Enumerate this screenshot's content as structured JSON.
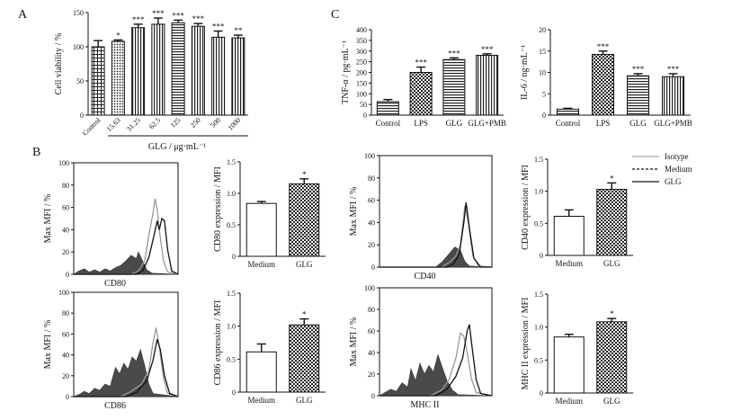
{
  "panel_labels": {
    "a": "A",
    "b": "B",
    "c": "C"
  },
  "chart_data": [
    {
      "id": "viability",
      "type": "bar",
      "ylabel": "Cell viability / %",
      "xlabel": "GLG / μg·mL⁻¹",
      "ylim": [
        0,
        150
      ],
      "yticks": [
        "0",
        "50",
        "100",
        "150"
      ],
      "categories": [
        "Control",
        "15.63",
        "31.25",
        "62.5",
        "125",
        "250",
        "500",
        "1000"
      ],
      "values": [
        100,
        108,
        128,
        133,
        135,
        130,
        114,
        113
      ],
      "errors": [
        9,
        2,
        5,
        9,
        4,
        4,
        9,
        4
      ],
      "significance": [
        "",
        "*",
        "***",
        "***",
        "***",
        "***",
        "***",
        "**"
      ],
      "fill_patterns": [
        "grid",
        "dots",
        "vlines",
        "vlines",
        "hlines",
        "vlines",
        "vlines",
        "vlines"
      ]
    },
    {
      "id": "tnf",
      "type": "bar",
      "ylabel": "TNF-α / pg·mL⁻¹",
      "ylim": [
        0,
        400
      ],
      "yticks": [
        "0",
        "50",
        "100",
        "150",
        "200",
        "250",
        "300",
        "350",
        "400"
      ],
      "categories": [
        "Control",
        "LPS",
        "GLG",
        "GLG+PMB"
      ],
      "values": [
        63,
        200,
        260,
        280
      ],
      "errors": [
        10,
        25,
        8,
        7
      ],
      "significance": [
        "",
        "***",
        "***",
        "***"
      ],
      "fill_patterns": [
        "hlines",
        "checker",
        "hlines",
        "vlines"
      ]
    },
    {
      "id": "il6",
      "type": "bar",
      "ylabel": "IL-6 / ng·mL⁻¹",
      "ylim": [
        0,
        20
      ],
      "yticks": [
        "0",
        "5",
        "10",
        "15",
        "20"
      ],
      "categories": [
        "Control",
        "LPS",
        "GLG",
        "GLG+PMB"
      ],
      "values": [
        1.4,
        14.2,
        9.2,
        9.0
      ],
      "errors": [
        0.2,
        0.8,
        0.5,
        0.7
      ],
      "significance": [
        "",
        "***",
        "***",
        "***"
      ],
      "fill_patterns": [
        "hlines",
        "checker",
        "hlines",
        "vlines"
      ]
    },
    {
      "id": "cd80-bar",
      "type": "bar",
      "ylabel": "CD80 expression / MFI",
      "ylim": [
        0,
        1.5
      ],
      "yticks": [
        "0",
        "0.5",
        "1.0",
        "1.5"
      ],
      "categories": [
        "Medium",
        "GLG"
      ],
      "values": [
        0.84,
        1.15
      ],
      "errors": [
        0.03,
        0.08
      ],
      "significance": [
        "",
        "*"
      ],
      "fill_patterns": [
        "white",
        "checker"
      ]
    },
    {
      "id": "cd86-bar",
      "type": "bar",
      "ylabel": "CD86 expression / MFI",
      "ylim": [
        0,
        1.5
      ],
      "yticks": [
        "0",
        "0.5",
        "1.0",
        "1.5"
      ],
      "categories": [
        "Medium",
        "GLG"
      ],
      "values": [
        0.61,
        1.02
      ],
      "errors": [
        0.12,
        0.09
      ],
      "significance": [
        "",
        "*"
      ],
      "fill_patterns": [
        "white",
        "checker"
      ]
    },
    {
      "id": "cd40-bar",
      "type": "bar",
      "ylabel": "CD40 expression / MFI",
      "ylim": [
        0,
        1.5
      ],
      "yticks": [
        "0",
        "0.5",
        "1.0",
        "1.5"
      ],
      "categories": [
        "Medium",
        "GLG"
      ],
      "values": [
        0.61,
        1.03
      ],
      "errors": [
        0.1,
        0.1
      ],
      "significance": [
        "",
        "*"
      ],
      "fill_patterns": [
        "white",
        "checker"
      ]
    },
    {
      "id": "mhc-bar",
      "type": "bar",
      "ylabel": "MHC II expression / MFI",
      "ylim": [
        0,
        1.5
      ],
      "yticks": [
        "0",
        "0.5",
        "1.0",
        "1.5"
      ],
      "categories": [
        "Medium",
        "GLG"
      ],
      "values": [
        0.85,
        1.08
      ],
      "errors": [
        0.04,
        0.05
      ],
      "significance": [
        "",
        "*"
      ],
      "fill_patterns": [
        "white",
        "checker"
      ]
    },
    {
      "id": "cd80-hist",
      "type": "area",
      "xlabel": "CD80",
      "ylabel": "Max MFI / %",
      "ylim": [
        0,
        100
      ],
      "yticks": [
        "0",
        "20",
        "40",
        "60",
        "80",
        "100"
      ],
      "series": [
        {
          "name": "Isotype",
          "points": [
            [
              0,
              0
            ],
            [
              0.05,
              3
            ],
            [
              0.1,
              5
            ],
            [
              0.15,
              2
            ],
            [
              0.2,
              4
            ],
            [
              0.25,
              2
            ],
            [
              0.3,
              5
            ],
            [
              0.35,
              3
            ],
            [
              0.4,
              6
            ],
            [
              0.45,
              8
            ],
            [
              0.5,
              12
            ],
            [
              0.55,
              17
            ],
            [
              0.6,
              14
            ],
            [
              0.62,
              20
            ],
            [
              0.66,
              12
            ],
            [
              0.7,
              4
            ],
            [
              0.75,
              1
            ],
            [
              1,
              0
            ]
          ]
        },
        {
          "name": "Medium",
          "points": [
            [
              0,
              0
            ],
            [
              0.55,
              0
            ],
            [
              0.62,
              3
            ],
            [
              0.68,
              12
            ],
            [
              0.72,
              35
            ],
            [
              0.76,
              55
            ],
            [
              0.78,
              68
            ],
            [
              0.8,
              58
            ],
            [
              0.82,
              40
            ],
            [
              0.86,
              12
            ],
            [
              0.9,
              2
            ],
            [
              1,
              0
            ]
          ]
        },
        {
          "name": "GLG",
          "points": [
            [
              0,
              0
            ],
            [
              0.6,
              0
            ],
            [
              0.66,
              3
            ],
            [
              0.72,
              15
            ],
            [
              0.77,
              35
            ],
            [
              0.8,
              48
            ],
            [
              0.82,
              40
            ],
            [
              0.845,
              50
            ],
            [
              0.87,
              48
            ],
            [
              0.9,
              22
            ],
            [
              0.94,
              3
            ],
            [
              1,
              0
            ]
          ]
        }
      ]
    },
    {
      "id": "cd86-hist",
      "type": "area",
      "xlabel": "CD86",
      "ylabel": "Max MFI / %",
      "ylim": [
        0,
        100
      ],
      "yticks": [
        "0",
        "20",
        "40",
        "60",
        "80",
        "100"
      ],
      "series": [
        {
          "name": "Isotype",
          "points": [
            [
              0,
              0
            ],
            [
              0.05,
              2
            ],
            [
              0.1,
              5
            ],
            [
              0.15,
              3
            ],
            [
              0.2,
              8
            ],
            [
              0.25,
              6
            ],
            [
              0.3,
              12
            ],
            [
              0.35,
              10
            ],
            [
              0.4,
              28
            ],
            [
              0.44,
              22
            ],
            [
              0.48,
              32
            ],
            [
              0.52,
              26
            ],
            [
              0.56,
              38
            ],
            [
              0.6,
              34
            ],
            [
              0.64,
              45
            ],
            [
              0.68,
              30
            ],
            [
              0.72,
              12
            ],
            [
              0.76,
              3
            ],
            [
              1,
              0
            ]
          ]
        },
        {
          "name": "Medium",
          "points": [
            [
              0,
              0
            ],
            [
              0.45,
              0
            ],
            [
              0.55,
              5
            ],
            [
              0.65,
              12
            ],
            [
              0.72,
              25
            ],
            [
              0.76,
              52
            ],
            [
              0.79,
              66
            ],
            [
              0.82,
              48
            ],
            [
              0.86,
              18
            ],
            [
              0.9,
              3
            ],
            [
              1,
              0
            ]
          ]
        },
        {
          "name": "GLG",
          "points": [
            [
              0,
              0
            ],
            [
              0.5,
              0
            ],
            [
              0.6,
              4
            ],
            [
              0.7,
              15
            ],
            [
              0.76,
              35
            ],
            [
              0.8,
              55
            ],
            [
              0.83,
              45
            ],
            [
              0.87,
              20
            ],
            [
              0.92,
              3
            ],
            [
              1,
              0
            ]
          ]
        }
      ]
    },
    {
      "id": "cd40-hist",
      "type": "area",
      "xlabel": "CD40",
      "ylabel": "Max MFI / %",
      "ylim": [
        0,
        100
      ],
      "yticks": [
        "0",
        "20",
        "40",
        "60",
        "80",
        "100"
      ],
      "series": [
        {
          "name": "Isotype",
          "points": [
            [
              0,
              0
            ],
            [
              0.5,
              0
            ],
            [
              0.56,
              5
            ],
            [
              0.62,
              12
            ],
            [
              0.67,
              18
            ],
            [
              0.72,
              15
            ],
            [
              0.76,
              5
            ],
            [
              0.8,
              1
            ],
            [
              1,
              0
            ]
          ]
        },
        {
          "name": "Medium",
          "points": [
            [
              0,
              0
            ],
            [
              0.55,
              0
            ],
            [
              0.62,
              4
            ],
            [
              0.68,
              10
            ],
            [
              0.72,
              20
            ],
            [
              0.76,
              55
            ],
            [
              0.79,
              40
            ],
            [
              0.83,
              10
            ],
            [
              0.88,
              1
            ],
            [
              1,
              0
            ]
          ]
        },
        {
          "name": "GLG",
          "points": [
            [
              0,
              0
            ],
            [
              0.6,
              0
            ],
            [
              0.66,
              3
            ],
            [
              0.71,
              12
            ],
            [
              0.75,
              40
            ],
            [
              0.77,
              58
            ],
            [
              0.8,
              35
            ],
            [
              0.84,
              8
            ],
            [
              0.9,
              0
            ],
            [
              1,
              0
            ]
          ]
        }
      ],
      "legend": [
        "Isotype",
        "Medium",
        "GLG"
      ]
    },
    {
      "id": "mhc-hist",
      "type": "area",
      "xlabel": "MHC II",
      "ylabel": "Max MFI / %",
      "ylim": [
        0,
        100
      ],
      "yticks": [
        "0",
        "20",
        "40",
        "60",
        "80",
        "100"
      ],
      "series": [
        {
          "name": "Isotype",
          "points": [
            [
              0,
              0
            ],
            [
              0.05,
              3
            ],
            [
              0.1,
              6
            ],
            [
              0.15,
              4
            ],
            [
              0.2,
              12
            ],
            [
              0.25,
              8
            ],
            [
              0.28,
              25
            ],
            [
              0.32,
              14
            ],
            [
              0.36,
              30
            ],
            [
              0.4,
              20
            ],
            [
              0.44,
              28
            ],
            [
              0.48,
              22
            ],
            [
              0.52,
              38
            ],
            [
              0.56,
              26
            ],
            [
              0.6,
              14
            ],
            [
              0.65,
              5
            ],
            [
              0.7,
              1
            ],
            [
              1,
              0
            ]
          ]
        },
        {
          "name": "Medium",
          "points": [
            [
              0,
              0
            ],
            [
              0.45,
              0
            ],
            [
              0.55,
              5
            ],
            [
              0.62,
              15
            ],
            [
              0.68,
              35
            ],
            [
              0.72,
              58
            ],
            [
              0.75,
              55
            ],
            [
              0.78,
              40
            ],
            [
              0.82,
              15
            ],
            [
              0.86,
              3
            ],
            [
              1,
              0
            ]
          ]
        },
        {
          "name": "GLG",
          "points": [
            [
              0,
              0
            ],
            [
              0.5,
              0
            ],
            [
              0.6,
              6
            ],
            [
              0.68,
              18
            ],
            [
              0.74,
              35
            ],
            [
              0.78,
              60
            ],
            [
              0.8,
              66
            ],
            [
              0.82,
              48
            ],
            [
              0.86,
              15
            ],
            [
              0.9,
              2
            ],
            [
              1,
              0
            ]
          ]
        }
      ]
    }
  ]
}
